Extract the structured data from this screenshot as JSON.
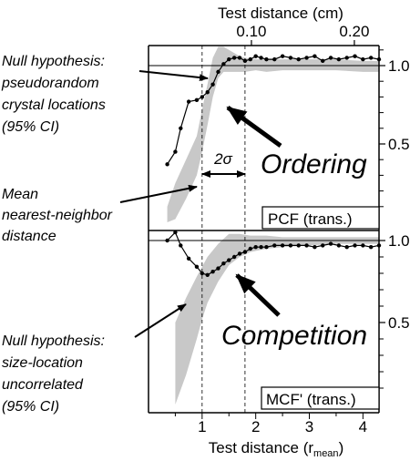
{
  "chart_data": [
    {
      "type": "line",
      "panel_label": "PCF (trans.)",
      "top_axis": {
        "label": "Test distance (cm)",
        "ticks": [
          {
            "value": 0.1,
            "label": "0.10",
            "x_rmean": 1.92
          },
          {
            "value": 0.2,
            "label": "0.20",
            "x_rmean": 3.84
          }
        ]
      },
      "xlim": [
        0,
        4.3
      ],
      "ylim": [
        0,
        1.1
      ],
      "y_ticks": [
        {
          "value": 1.0,
          "label": "1.0"
        },
        {
          "value": 0.5,
          "label": "0.5"
        }
      ],
      "reference_line": 1.0,
      "vertical_markers": [
        {
          "x": 1.0,
          "style": "dashed"
        },
        {
          "x": 1.8,
          "style": "dashed"
        }
      ],
      "ci_band": {
        "label": "Null hypothesis: pseudorandom crystal locations (95% CI)",
        "x": [
          0.35,
          0.5,
          0.7,
          0.9,
          1.0,
          1.1,
          1.2,
          1.3,
          1.4,
          1.5,
          1.6,
          1.7,
          1.8,
          2.0,
          2.2,
          2.5,
          3.0,
          3.5,
          4.0,
          4.3
        ],
        "upper": [
          0.1,
          0.25,
          0.4,
          0.55,
          0.72,
          0.88,
          1.05,
          1.12,
          1.12,
          1.1,
          1.08,
          1.06,
          1.05,
          1.04,
          1.04,
          1.04,
          1.04,
          1.04,
          1.03,
          1.03
        ],
        "lower": [
          0.0,
          0.02,
          0.15,
          0.3,
          0.45,
          0.62,
          0.8,
          0.92,
          0.96,
          0.96,
          0.96,
          0.96,
          0.96,
          0.97,
          0.96,
          0.97,
          0.97,
          0.97,
          0.96,
          0.96
        ]
      },
      "series": [
        {
          "x": [
            0.35,
            0.5,
            0.6,
            0.75,
            0.9,
            1.0,
            1.1,
            1.2,
            1.3,
            1.4,
            1.5,
            1.6,
            1.7,
            1.8,
            1.9,
            2.0,
            2.1,
            2.2,
            2.35,
            2.5,
            2.65,
            2.8,
            2.95,
            3.1,
            3.25,
            3.4,
            3.55,
            3.7,
            3.85,
            4.0,
            4.15,
            4.3
          ],
          "y": [
            0.37,
            0.45,
            0.6,
            0.77,
            0.78,
            0.8,
            0.83,
            0.88,
            0.96,
            1.01,
            1.04,
            1.05,
            1.05,
            1.03,
            1.04,
            1.06,
            1.05,
            1.04,
            1.04,
            1.06,
            1.05,
            1.04,
            1.05,
            1.06,
            1.03,
            1.05,
            1.04,
            1.05,
            1.06,
            1.04,
            1.05,
            1.04
          ]
        }
      ],
      "annotations": [
        {
          "text": "Null hypothesis: pseudorandom crystal locations (95% CI)",
          "target": "ci_band"
        },
        {
          "text": "Ordering",
          "target": "series"
        },
        {
          "text": "2σ",
          "between": [
            1.0,
            1.8
          ]
        },
        {
          "text": "Mean nearest-neighbor distance",
          "target": "marker_1.0"
        }
      ]
    },
    {
      "type": "line",
      "panel_label": "MCF' (trans.)",
      "xlabel": "Test distance (r",
      "xlabel_sub": "mean",
      "xlabel_end": ")",
      "xlim": [
        0,
        4.3
      ],
      "ylim": [
        0,
        1.1
      ],
      "x_ticks": [
        {
          "value": 1,
          "label": "1"
        },
        {
          "value": 2,
          "label": "2"
        },
        {
          "value": 3,
          "label": "3"
        },
        {
          "value": 4,
          "label": "4"
        }
      ],
      "y_ticks": [
        {
          "value": 1.0,
          "label": "1.0"
        },
        {
          "value": 0.5,
          "label": "0.5"
        }
      ],
      "reference_line": 1.0,
      "vertical_markers": [
        {
          "x": 1.0,
          "style": "dashed"
        },
        {
          "x": 1.8,
          "style": "dashed"
        }
      ],
      "ci_band": {
        "label": "Null hypothesis: size-location uncorrelated (95% CI)",
        "x": [
          0.5,
          0.7,
          0.9,
          1.0,
          1.1,
          1.3,
          1.5,
          1.7,
          1.9,
          2.2,
          2.5,
          3.0,
          3.5,
          4.0,
          4.3
        ],
        "upper": [
          0.5,
          0.65,
          0.78,
          0.84,
          0.9,
          0.98,
          1.04,
          1.04,
          1.03,
          1.03,
          1.02,
          1.02,
          1.02,
          1.02,
          1.02
        ],
        "lower": [
          0.0,
          0.18,
          0.4,
          0.52,
          0.62,
          0.75,
          0.85,
          0.9,
          0.93,
          0.95,
          0.96,
          0.97,
          0.98,
          0.98,
          0.98
        ]
      },
      "series": [
        {
          "x": [
            0.35,
            0.5,
            0.6,
            0.75,
            0.9,
            1.0,
            1.1,
            1.2,
            1.3,
            1.4,
            1.5,
            1.6,
            1.7,
            1.8,
            1.9,
            2.0,
            2.1,
            2.2,
            2.35,
            2.5,
            2.65,
            2.8,
            2.95,
            3.1,
            3.25,
            3.4,
            3.55,
            3.7,
            3.85,
            4.0,
            4.15,
            4.3
          ],
          "y": [
            1.0,
            1.05,
            0.97,
            0.89,
            0.84,
            0.8,
            0.79,
            0.81,
            0.83,
            0.86,
            0.88,
            0.9,
            0.92,
            0.93,
            0.95,
            0.96,
            0.96,
            0.96,
            0.97,
            0.97,
            0.97,
            0.97,
            0.97,
            0.96,
            0.97,
            0.98,
            0.97,
            0.96,
            0.97,
            0.97,
            0.96,
            0.97
          ]
        }
      ],
      "annotations": [
        {
          "text": "Null hypothesis: size-location uncorrelated (95% CI)",
          "target": "ci_band"
        },
        {
          "text": "Competition",
          "target": "series"
        }
      ]
    }
  ],
  "text": {
    "top_axis_label": "Test distance (cm)",
    "bottom_axis_label_main": "Test distance (r",
    "bottom_axis_label_sub": "mean",
    "bottom_axis_label_end": ")",
    "null_pcf": [
      "Null hypothesis:",
      "pseudorandom",
      "crystal locations",
      "(95% CI)"
    ],
    "mean_nn": [
      "Mean",
      "nearest-neighbor",
      "distance"
    ],
    "null_mcf": [
      "Null hypothesis:",
      "size-location",
      "uncorrelated",
      "(95% CI)"
    ],
    "ordering": "Ordering",
    "competition": "Competition",
    "two_sigma": "2σ",
    "pcf_label": "PCF (trans.)",
    "mcf_label": "MCF' (trans.)"
  },
  "colors": {
    "band": "#c8c8c8",
    "line": "#000000",
    "axis": "#000000",
    "background": "#ffffff"
  }
}
